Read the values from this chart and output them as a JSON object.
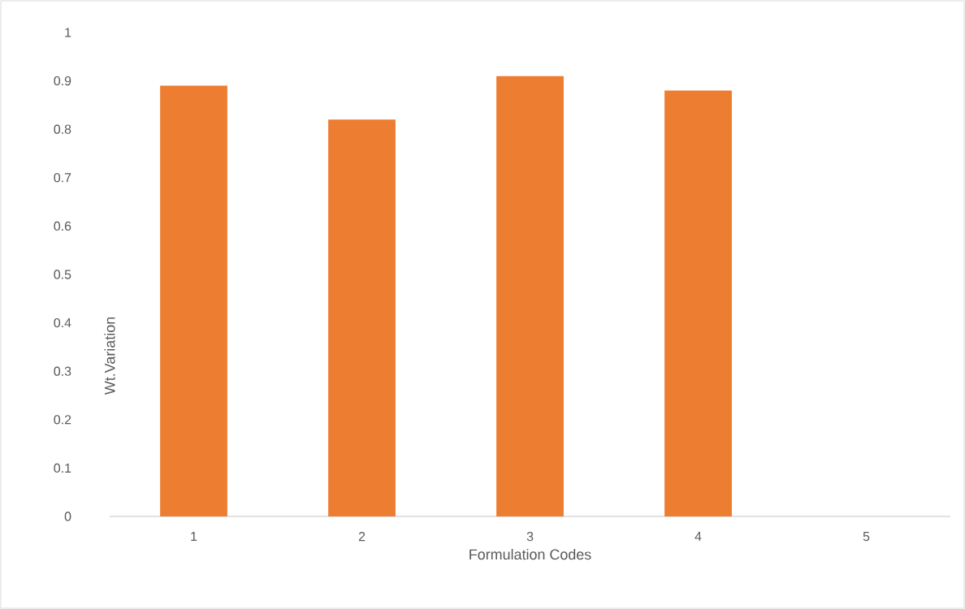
{
  "chart_data": {
    "type": "bar",
    "xlabel": "Formulation Codes",
    "ylabel": "Wt.Variation",
    "categories": [
      "1",
      "2",
      "3",
      "4",
      "5"
    ],
    "values": [
      0.89,
      0.82,
      0.91,
      0.88,
      null
    ],
    "color": "#ed7d31",
    "ylim": [
      0,
      1
    ],
    "yticks": [
      0,
      0.1,
      0.2,
      0.3,
      0.4,
      0.5,
      0.6,
      0.7,
      0.8,
      0.9,
      1
    ]
  }
}
